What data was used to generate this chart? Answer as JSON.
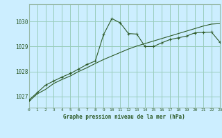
{
  "title": "Graphe pression niveau de la mer (hPa)",
  "background_color": "#cceeff",
  "plot_bg_color": "#cceeff",
  "grid_color": "#99ccbb",
  "line_color": "#2d5a27",
  "border_color": "#99bbaa",
  "xlim": [
    0,
    23
  ],
  "ylim": [
    1026.55,
    1030.7
  ],
  "yticks": [
    1027,
    1028,
    1029,
    1030
  ],
  "xticks": [
    0,
    1,
    2,
    3,
    4,
    5,
    6,
    7,
    8,
    9,
    10,
    11,
    12,
    13,
    14,
    15,
    16,
    17,
    18,
    19,
    20,
    21,
    22,
    23
  ],
  "line1_x": [
    0,
    1,
    2,
    3,
    4,
    5,
    6,
    7,
    8,
    9,
    10,
    11,
    12,
    13,
    14,
    15,
    16,
    17,
    18,
    19,
    20,
    21,
    22,
    23
  ],
  "line1_y": [
    1026.8,
    1027.1,
    1027.28,
    1027.52,
    1027.68,
    1027.82,
    1028.0,
    1028.15,
    1028.32,
    1028.48,
    1028.62,
    1028.76,
    1028.9,
    1029.02,
    1029.12,
    1029.22,
    1029.32,
    1029.42,
    1029.52,
    1029.62,
    1029.72,
    1029.82,
    1029.9,
    1029.92
  ],
  "line2_x": [
    0,
    1,
    2,
    3,
    4,
    5,
    6,
    7,
    8,
    9,
    10,
    11,
    12,
    13,
    14,
    15,
    16,
    17,
    18,
    19,
    20,
    21,
    22,
    23
  ],
  "line2_y": [
    1026.85,
    1027.15,
    1027.45,
    1027.62,
    1027.78,
    1027.92,
    1028.1,
    1028.28,
    1028.42,
    1029.48,
    1030.12,
    1029.95,
    1029.52,
    1029.5,
    1029.0,
    1029.0,
    1029.15,
    1029.28,
    1029.35,
    1029.42,
    1029.55,
    1029.57,
    1029.58,
    1029.18
  ]
}
